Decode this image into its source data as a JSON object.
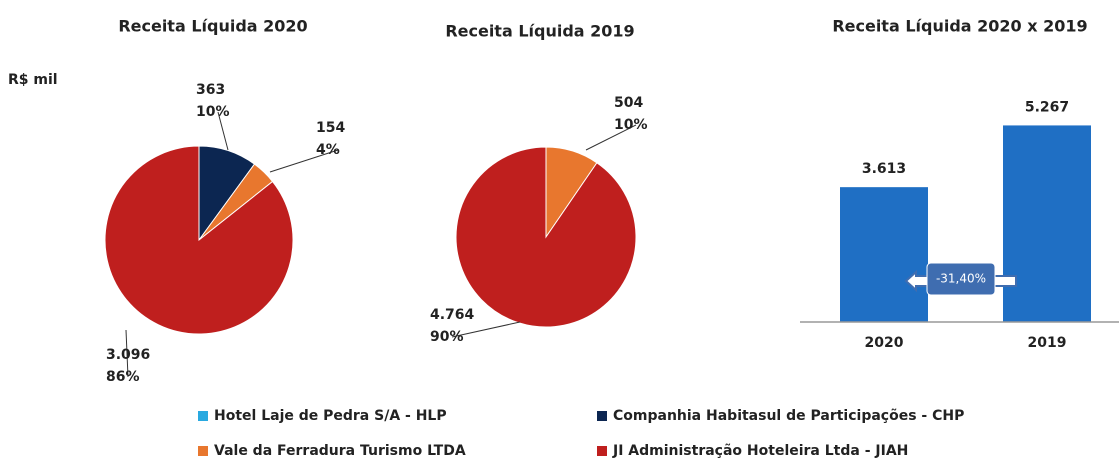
{
  "unit": "R$ mil",
  "legend": {
    "labels": [
      "Hotel Laje de Pedra S/A - HLP",
      "Companhia Habitasul de Participações - CHP",
      "Vale da Ferradura Turismo LTDA",
      "JI Administração Hoteleira Ltda - JIAH"
    ],
    "colors": [
      "#29a9e0",
      "#0c2651",
      "#e8772e",
      "#bf1f1e"
    ]
  },
  "chart_data": [
    {
      "type": "pie",
      "title": "Receita Líquida 2020",
      "values": [
        null,
        363,
        154,
        3096
      ],
      "value_labels": [
        null,
        "363",
        "154",
        "3.096"
      ],
      "percents": [
        null,
        10,
        4,
        86
      ],
      "percent_labels": [
        null,
        "10%",
        "4%",
        "86%"
      ]
    },
    {
      "type": "pie",
      "title": "Receita Líquida 2019",
      "values": [
        null,
        null,
        504,
        4764
      ],
      "value_labels": [
        null,
        null,
        "504",
        "4.764"
      ],
      "percents": [
        null,
        null,
        10,
        90
      ],
      "percent_labels": [
        null,
        null,
        "10%",
        "90%"
      ]
    },
    {
      "type": "bar",
      "title": "Receita Líquida 2020 x 2019",
      "categories": [
        "2020",
        "2019"
      ],
      "values": [
        3613,
        5267
      ],
      "value_labels": [
        "3.613",
        "5.267"
      ],
      "color": "#1f6fc4",
      "ylim": [
        0,
        5600
      ],
      "annotation": "-31,40%"
    }
  ]
}
